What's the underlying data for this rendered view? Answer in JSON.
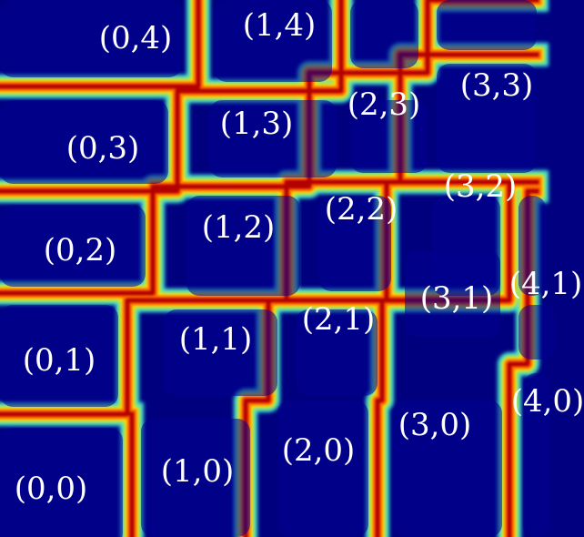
{
  "labels": [
    {
      "text": "(0,4)"
    },
    {
      "text": "(1,4)"
    },
    {
      "text": "(0,3)"
    },
    {
      "text": "(1,3)"
    },
    {
      "text": "(2,3)"
    },
    {
      "text": "(3,3)"
    },
    {
      "text": "(0,2)"
    },
    {
      "text": "(1,2)"
    },
    {
      "text": "(2,2)"
    },
    {
      "text": "(3,2)"
    },
    {
      "text": "(0,1)"
    },
    {
      "text": "(1,1)"
    },
    {
      "text": "(2,1)"
    },
    {
      "text": "(3,1)"
    },
    {
      "text": "(0,0)"
    },
    {
      "text": "(1,0)"
    },
    {
      "text": "(2,0)"
    },
    {
      "text": "(3,0)"
    },
    {
      "text": "(4,1)"
    },
    {
      "text": "(4,0)"
    }
  ],
  "colors": {
    "background": "#00007f",
    "cell_fill": "#000090",
    "glow_cyan": "#40e0d0",
    "glow_yellow": "#ffe000",
    "glow_orange": "#ff7000",
    "boundary_red": "#b40000",
    "text": "#ffffff"
  },
  "colormap": "jet"
}
